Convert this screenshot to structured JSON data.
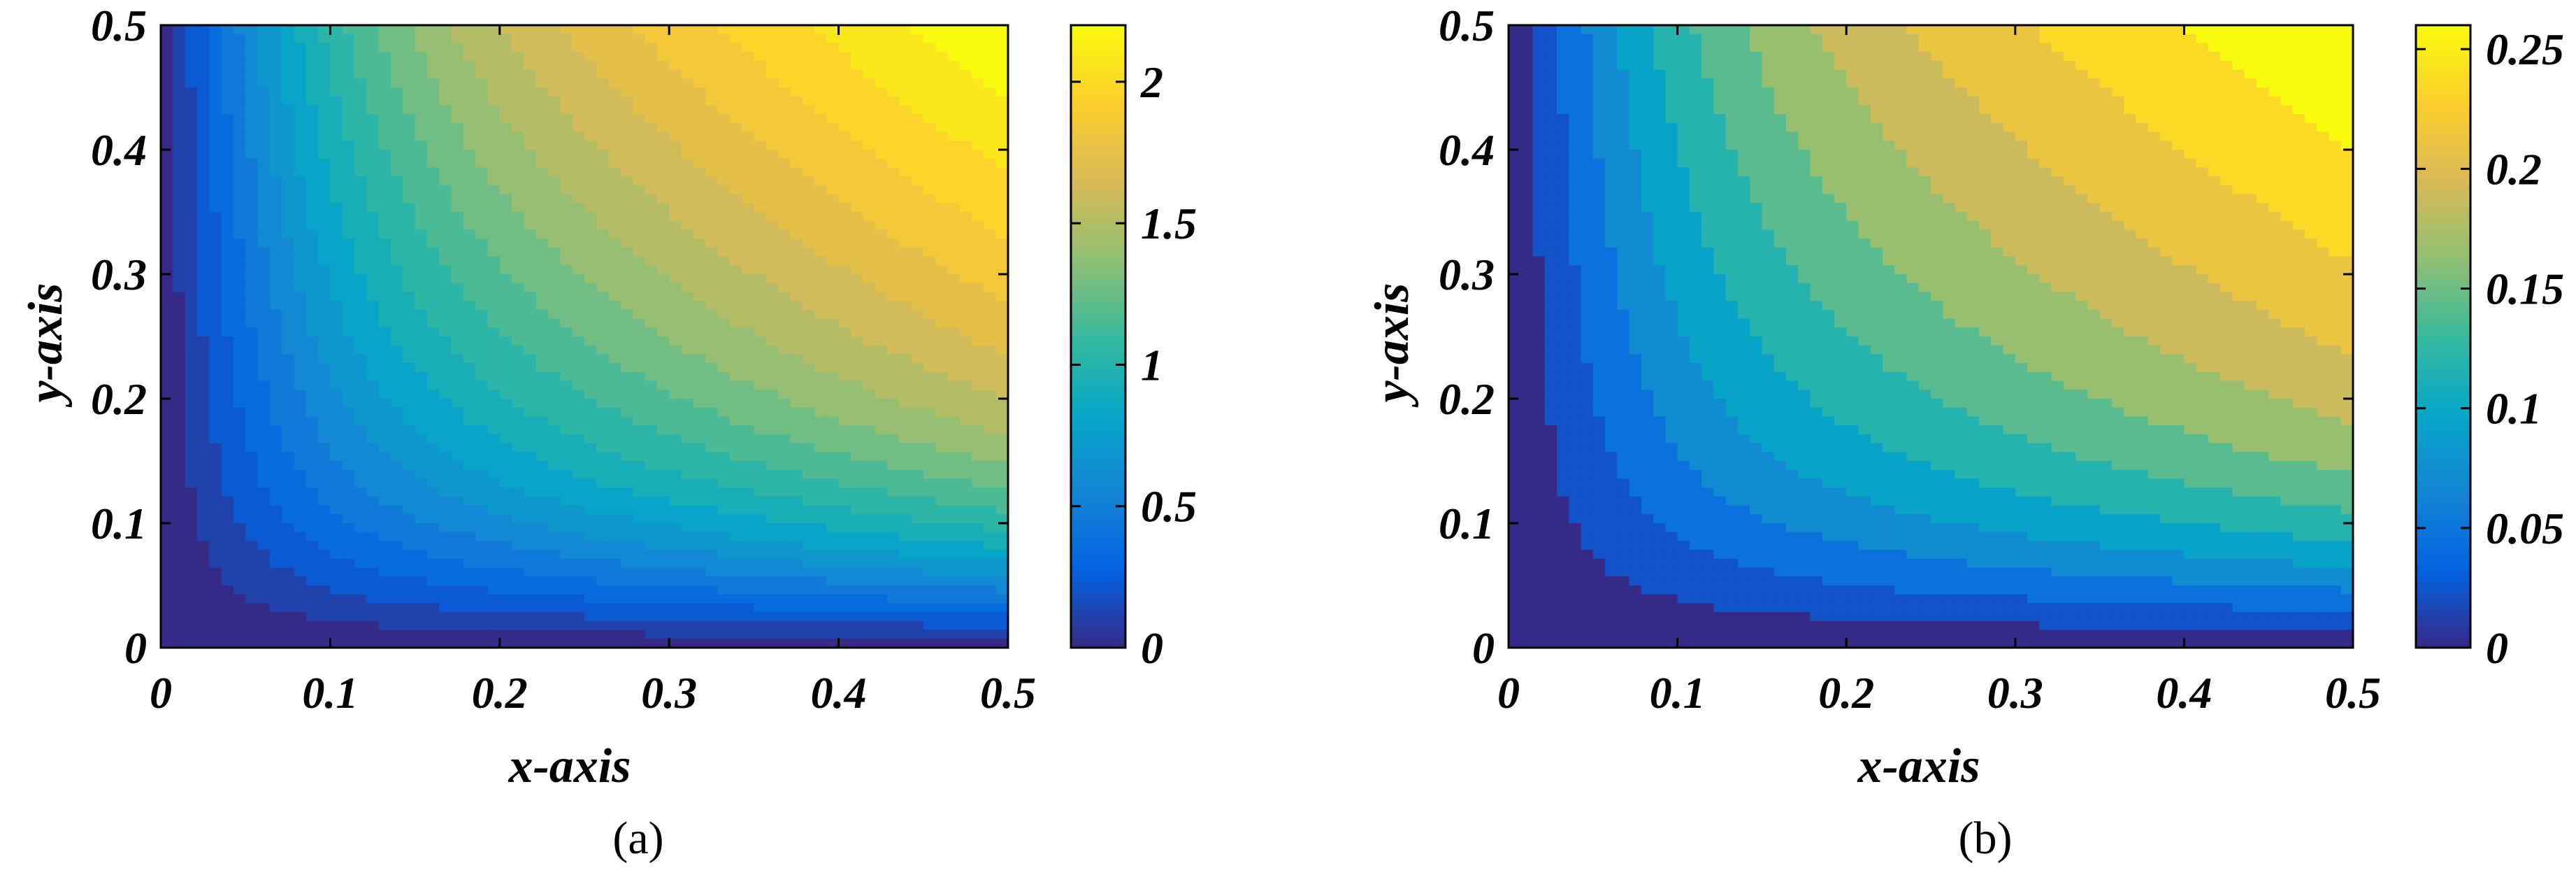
{
  "chart_data": [
    {
      "type": "heatmap",
      "panel_label": "(a)",
      "xlabel": "x-axis",
      "ylabel": "y-axis",
      "xlim": [
        0,
        0.5
      ],
      "ylim": [
        0,
        0.5
      ],
      "xticks": [
        "0",
        "0.1",
        "0.2",
        "0.3",
        "0.4",
        "0.5"
      ],
      "yticks": [
        "0",
        "0.1",
        "0.2",
        "0.3",
        "0.4",
        "0.5"
      ],
      "colorbar": {
        "range": [
          0,
          2.2
        ],
        "ticks": [
          0,
          0.5,
          1,
          1.5,
          2
        ],
        "tick_labels": [
          "0",
          "0.5",
          "1",
          "1.5",
          "2"
        ]
      },
      "field": "smooth rise from 0 along the x=0 and y=0 edges to a maximum near (0.5, 0.5)",
      "max_value": 2.2,
      "levels": 20,
      "colormap": "parula"
    },
    {
      "type": "heatmap",
      "panel_label": "(b)",
      "xlabel": "x-axis",
      "ylabel": "y-axis",
      "xlim": [
        0,
        0.5
      ],
      "ylim": [
        0,
        0.5
      ],
      "xticks": [
        "0",
        "0.1",
        "0.2",
        "0.3",
        "0.4",
        "0.5"
      ],
      "yticks": [
        "0",
        "0.1",
        "0.2",
        "0.3",
        "0.4",
        "0.5"
      ],
      "colorbar": {
        "range": [
          0,
          0.26
        ],
        "ticks": [
          0,
          0.05,
          0.1,
          0.15,
          0.2,
          0.25
        ],
        "tick_labels": [
          "0",
          "0.05",
          "0.1",
          "0.15",
          "0.2",
          "0.25"
        ]
      },
      "field": "smooth rise from 0 along the x=0 and y=0 edges to a maximum near (0.5, 0.5)",
      "max_value": 0.26,
      "levels": 12,
      "colormap": "parula"
    }
  ],
  "colors": {
    "parula": [
      "#352a87",
      "#0363e1",
      "#1485d4",
      "#06a7c6",
      "#38b99e",
      "#92bf73",
      "#d9ba56",
      "#fcce2e",
      "#f9fb0e"
    ]
  }
}
